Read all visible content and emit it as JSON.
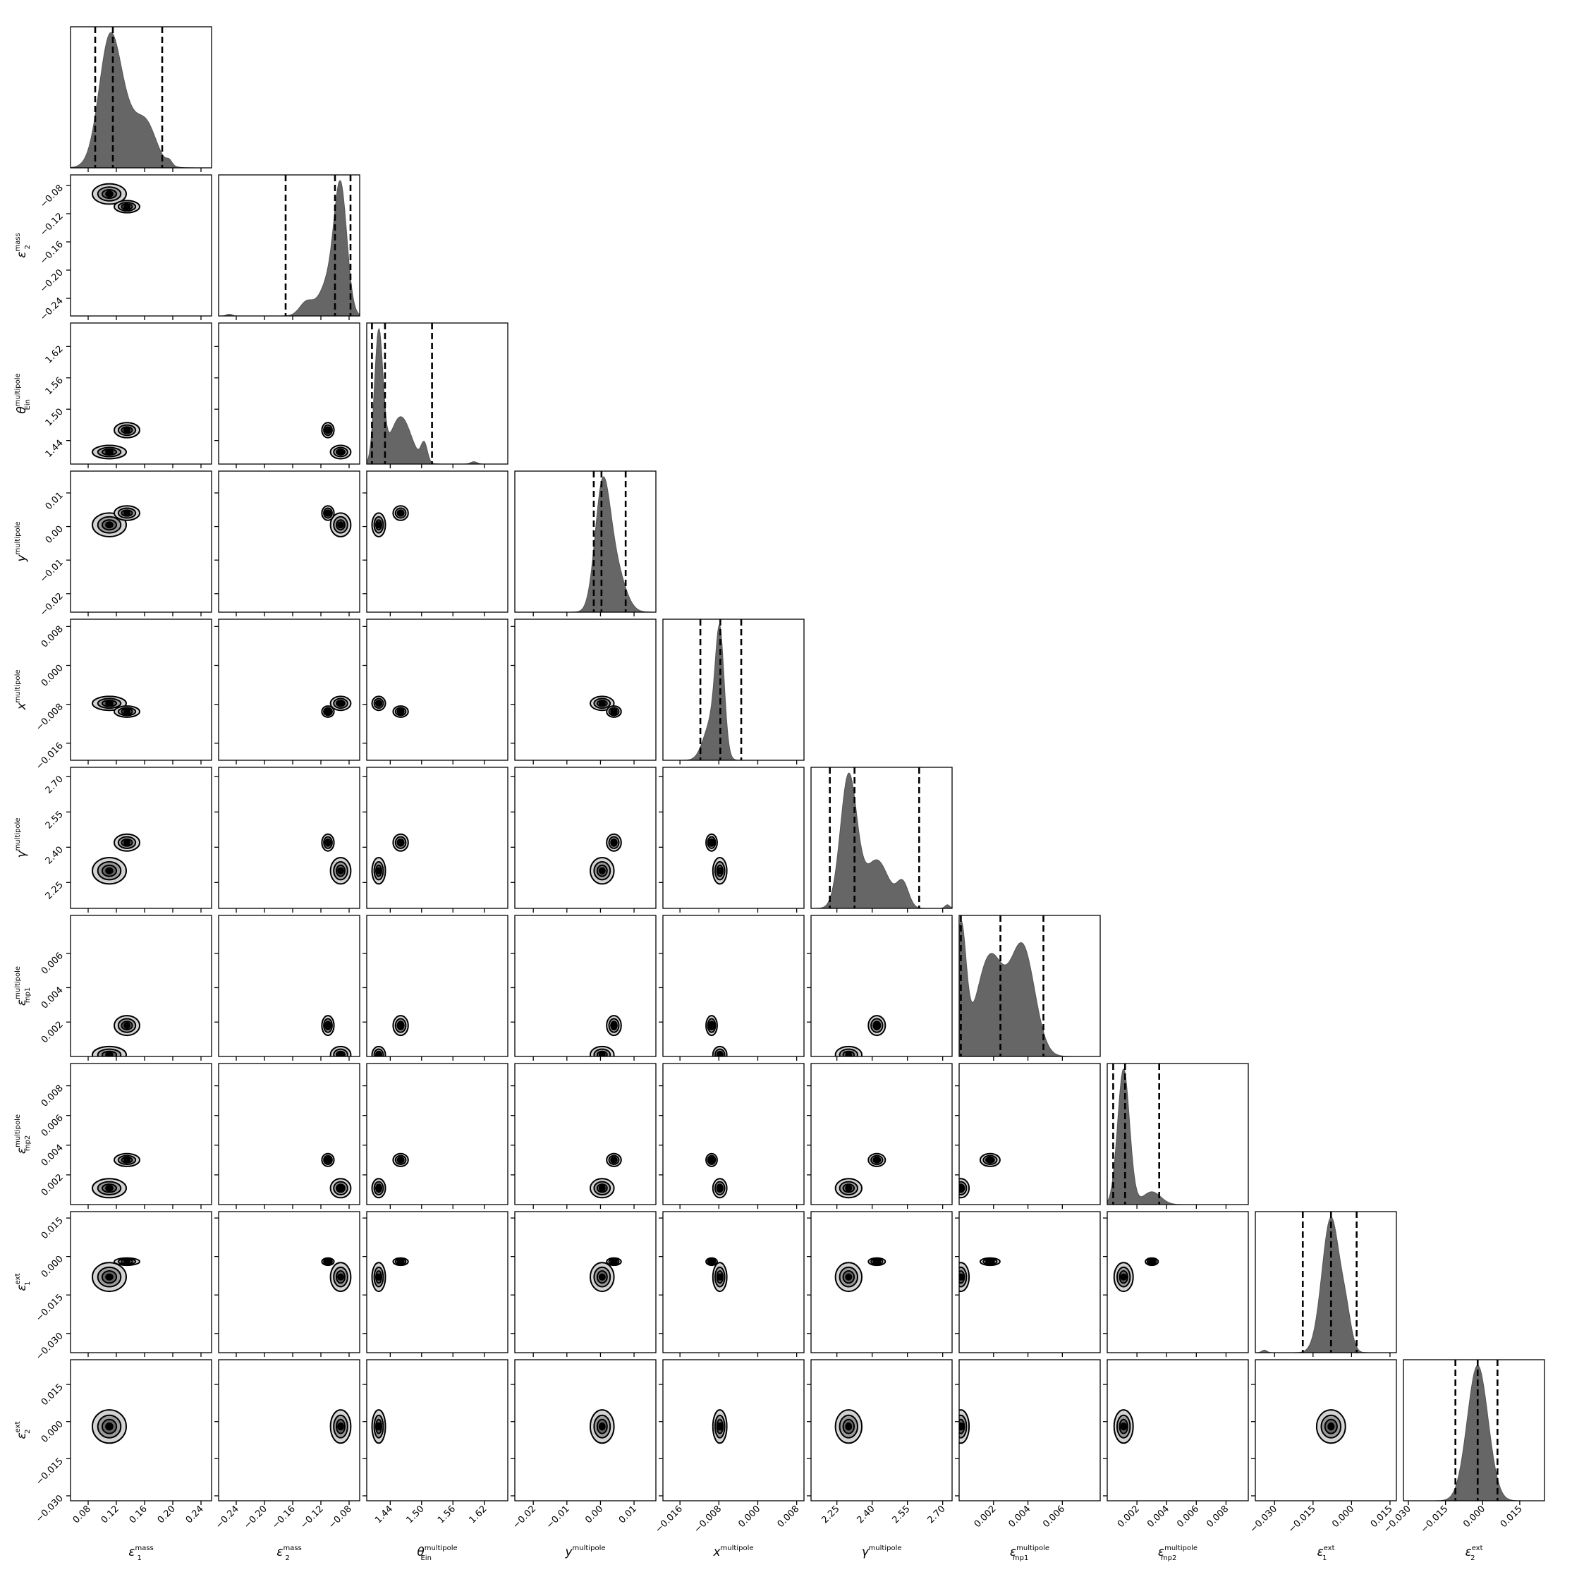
{
  "chart_data": {
    "type": "corner",
    "title": "",
    "params": [
      {
        "key": "e1_mass",
        "label": "ε",
        "sub": "1",
        "sup": "mass",
        "range": [
          0.055,
          0.255
        ],
        "ticks": [
          "0.08",
          "0.12",
          "0.16",
          "0.20",
          "0.24"
        ],
        "tick_values": [
          0.08,
          0.12,
          0.16,
          0.2,
          0.24
        ],
        "quantiles": [
          0.09,
          0.115,
          0.185
        ]
      },
      {
        "key": "e2_mass",
        "label": "ε",
        "sub": "2",
        "sup": "mass",
        "range": [
          -0.265,
          -0.065
        ],
        "ticks": [
          "−0.24",
          "−0.20",
          "−0.16",
          "−0.12",
          "−0.08"
        ],
        "tick_values": [
          -0.24,
          -0.2,
          -0.16,
          -0.12,
          -0.08
        ],
        "quantiles": [
          -0.17,
          -0.1,
          -0.078
        ]
      },
      {
        "key": "theta_ein",
        "label": "θ",
        "sub": "Ein",
        "sup": "multipole",
        "range": [
          1.395,
          1.665
        ],
        "ticks": [
          "1.44",
          "1.50",
          "1.56",
          "1.62"
        ],
        "tick_values": [
          1.44,
          1.5,
          1.56,
          1.62
        ],
        "quantiles": [
          1.405,
          1.43,
          1.52
        ]
      },
      {
        "key": "y_mp",
        "label": "y",
        "sub": "",
        "sup": "multipole",
        "range": [
          -0.0255,
          0.0165
        ],
        "ticks": [
          "−0.02",
          "−0.01",
          "0.00",
          "0.01"
        ],
        "tick_values": [
          -0.02,
          -0.01,
          0.0,
          0.01
        ],
        "quantiles": [
          -0.002,
          0.0003,
          0.0075
        ]
      },
      {
        "key": "x_mp",
        "label": "x",
        "sub": "",
        "sup": "multipole",
        "range": [
          -0.0195,
          0.0095
        ],
        "ticks": [
          "−0.016",
          "−0.008",
          "0.000",
          "0.008"
        ],
        "tick_values": [
          -0.016,
          -0.008,
          0.0,
          0.008
        ],
        "quantiles": [
          -0.0118,
          -0.0077,
          -0.0034
        ]
      },
      {
        "key": "gamma_mp",
        "label": "γ",
        "sub": "",
        "sup": "multipole",
        "range": [
          2.14,
          2.74
        ],
        "ticks": [
          "2.25",
          "2.40",
          "2.55",
          "2.70"
        ],
        "tick_values": [
          2.25,
          2.4,
          2.55,
          2.7
        ],
        "quantiles": [
          2.22,
          2.325,
          2.6
        ]
      },
      {
        "key": "e_mp1",
        "label": "ε",
        "sub": "mp1",
        "sup": "multipole",
        "range": [
          0.0,
          0.0082
        ],
        "ticks": [
          "0.002",
          "0.004",
          "0.006"
        ],
        "tick_values": [
          0.002,
          0.004,
          0.006
        ],
        "quantiles": [
          0.0001,
          0.0024,
          0.0049
        ]
      },
      {
        "key": "e_mp2",
        "label": "ε",
        "sub": "mp2",
        "sup": "multipole",
        "range": [
          0.0,
          0.0095
        ],
        "ticks": [
          "0.002",
          "0.004",
          "0.006",
          "0.008"
        ],
        "tick_values": [
          0.002,
          0.004,
          0.006,
          0.008
        ],
        "quantiles": [
          0.0004,
          0.0012,
          0.0035
        ]
      },
      {
        "key": "e1_ext",
        "label": "ε",
        "sub": "1",
        "sup": "ext",
        "range": [
          -0.0375,
          0.0175
        ],
        "ticks": [
          "−0.030",
          "−0.015",
          "0.000",
          "0.015"
        ],
        "tick_values": [
          -0.03,
          -0.015,
          0.0,
          0.015
        ],
        "quantiles": [
          -0.019,
          -0.008,
          0.002
        ]
      },
      {
        "key": "e2_ext",
        "label": "ε",
        "sub": "2",
        "sup": "ext",
        "range": [
          -0.032,
          0.025
        ],
        "ticks": [
          "−0.030",
          "−0.015",
          "0.000",
          "0.015"
        ],
        "tick_values": [
          -0.03,
          -0.015,
          0.0,
          0.015
        ],
        "quantiles": [
          -0.011,
          -0.002,
          0.006
        ]
      }
    ],
    "modes": [
      {
        "comps": [
          [
            0.11,
            0.55,
            0.015
          ],
          [
            0.135,
            0.25,
            0.025
          ],
          [
            0.165,
            0.12,
            0.013
          ],
          [
            0.195,
            0.025,
            0.004
          ]
        ]
      },
      {
        "comps": [
          [
            -0.092,
            0.7,
            0.009
          ],
          [
            -0.11,
            0.18,
            0.012
          ],
          [
            -0.14,
            0.08,
            0.01
          ],
          [
            -0.25,
            0.01,
            0.004
          ]
        ]
      },
      {
        "comps": [
          [
            1.418,
            0.55,
            0.008
          ],
          [
            1.46,
            0.2,
            0.02
          ],
          [
            1.505,
            0.08,
            0.006
          ],
          [
            1.6,
            0.01,
            0.006
          ]
        ]
      },
      {
        "comps": [
          [
            0.0005,
            0.7,
            0.0022
          ],
          [
            0.004,
            0.3,
            0.003
          ]
        ]
      },
      {
        "comps": [
          [
            -0.0078,
            0.75,
            0.0009
          ],
          [
            -0.0095,
            0.25,
            0.0016
          ]
        ]
      },
      {
        "comps": [
          [
            2.3,
            0.55,
            0.035
          ],
          [
            2.42,
            0.2,
            0.05
          ],
          [
            2.53,
            0.1,
            0.025
          ],
          [
            2.72,
            0.015,
            0.01
          ]
        ]
      },
      {
        "comps": [
          [
            0.0001,
            0.35,
            0.0003
          ],
          [
            0.0018,
            0.28,
            0.0008
          ],
          [
            0.0037,
            0.3,
            0.0007
          ]
        ]
      },
      {
        "comps": [
          [
            0.0011,
            0.85,
            0.0004
          ],
          [
            0.003,
            0.08,
            0.0006
          ]
        ]
      },
      {
        "comps": [
          [
            -0.008,
            0.8,
            0.0035
          ],
          [
            -0.002,
            0.15,
            0.002
          ],
          [
            -0.034,
            0.015,
            0.001
          ]
        ]
      },
      {
        "comps": [
          [
            -0.002,
            1.0,
            0.0042
          ]
        ]
      }
    ]
  }
}
